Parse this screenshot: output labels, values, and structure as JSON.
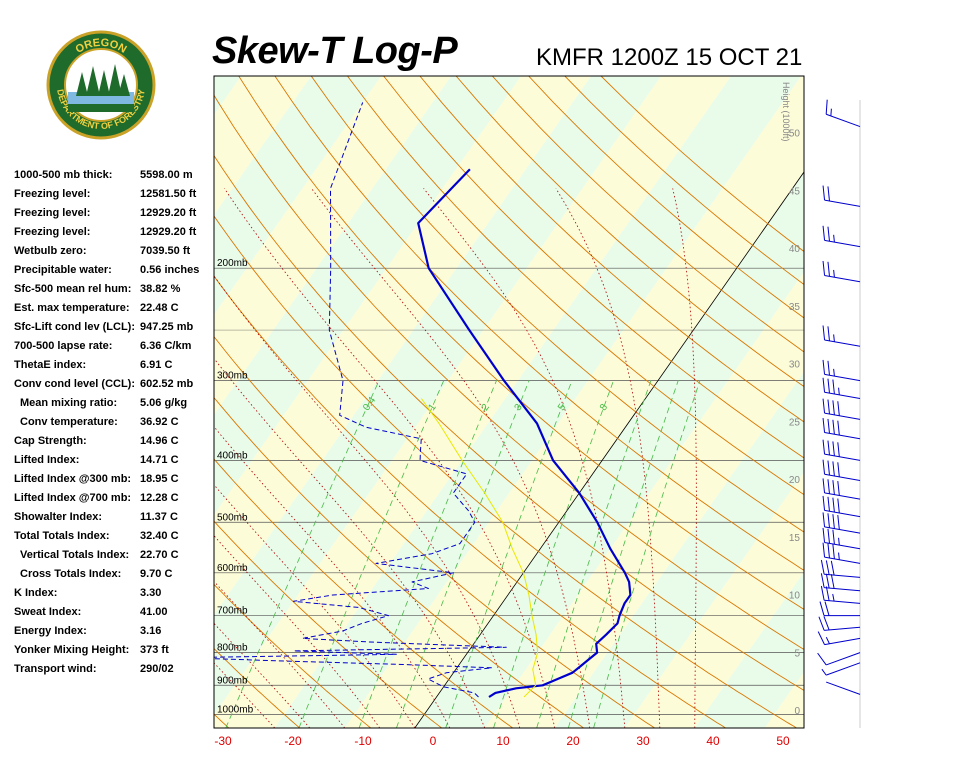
{
  "title": "Skew-T Log-P",
  "station": "KMFR 1200Z 15 OCT 21",
  "logo": {
    "top_text": "OREGON",
    "bottom_text": "DEPARTMENT OF FORESTRY"
  },
  "height_axis_label": "Height (1000ft)",
  "indices": [
    {
      "label": "1000-500 mb thick:",
      "value": "5598.00 m"
    },
    {
      "label": "Freezing level:",
      "value": "12581.50 ft"
    },
    {
      "label": "Freezing level:",
      "value": "12929.20 ft"
    },
    {
      "label": "Freezing level:",
      "value": "12929.20 ft"
    },
    {
      "label": "Wetbulb zero:",
      "value": "7039.50 ft"
    },
    {
      "label": "Precipitable water:",
      "value": "0.56 inches"
    },
    {
      "label": "Sfc-500 mean rel hum:",
      "value": "38.82 %"
    },
    {
      "label": "Est. max temperature:",
      "value": "22.48 C"
    },
    {
      "label": "Sfc-Lift cond lev (LCL):",
      "value": "947.25 mb"
    },
    {
      "label": "700-500 lapse rate:",
      "value": "6.36 C/km"
    },
    {
      "label": "ThetaE index:",
      "value": "6.91 C"
    },
    {
      "label": "Conv cond level (CCL):",
      "value": "602.52 mb"
    },
    {
      "label": "Mean mixing ratio:",
      "value": "5.06 g/kg",
      "indent": true
    },
    {
      "label": "Conv temperature:",
      "value": "36.92 C",
      "indent": true
    },
    {
      "label": "Cap Strength:",
      "value": "14.96 C"
    },
    {
      "label": "Lifted Index:",
      "value": "14.71 C"
    },
    {
      "label": "Lifted Index @300 mb:",
      "value": "18.95 C"
    },
    {
      "label": "Lifted Index @700 mb:",
      "value": "12.28 C"
    },
    {
      "label": "Showalter Index:",
      "value": "11.37 C"
    },
    {
      "label": "Total Totals Index:",
      "value": "32.40 C"
    },
    {
      "label": "Vertical Totals Index:",
      "value": "22.70 C",
      "indent": true
    },
    {
      "label": "Cross Totals Index:",
      "value": "9.70 C",
      "indent": true
    },
    {
      "label": "K Index:",
      "value": "3.30"
    },
    {
      "label": "Sweat Index:",
      "value": "41.00"
    },
    {
      "label": "Energy Index:",
      "value": "3.16"
    },
    {
      "label": "Yonker Mixing Height:",
      "value": "373 ft"
    },
    {
      "label": "Transport wind:",
      "value": "290/02"
    }
  ],
  "chart_data": {
    "type": "line",
    "title": "Skew-T Log-P",
    "xlabel": "",
    "ylabel": "",
    "x_ticks": [
      -30,
      -20,
      -10,
      0,
      10,
      20,
      30,
      40,
      50
    ],
    "pressure_levels": [
      "200mb",
      "300mb",
      "400mb",
      "500mb",
      "600mb",
      "700mb",
      "800mb",
      "900mb",
      "1000mb"
    ],
    "height_ticks": [
      0,
      5,
      10,
      15,
      20,
      25,
      30,
      35,
      40,
      45,
      50
    ],
    "mixing_ratio_labels": [
      "0.4",
      "1",
      "2",
      "3",
      "5",
      "8"
    ],
    "colors": {
      "temperature": "#0000cc",
      "dewpoint": "#0000cc",
      "parcel": "#e8e800",
      "dry_adiabat": "#d97700",
      "moist_adiabat": "#b00000",
      "mixing_ratio": "#44bb44",
      "band_green": "#e9fbe9",
      "band_yellow": "#fdfcd9"
    },
    "series": [
      {
        "points": [
          [
            939,
            7.5
          ],
          [
            925,
            8
          ],
          [
            910,
            10.5
          ],
          [
            900,
            14
          ],
          [
            880,
            15.5
          ],
          [
            860,
            17
          ],
          [
            840,
            17.5
          ],
          [
            820,
            18
          ],
          [
            800,
            18.5
          ],
          [
            775,
            17.5
          ],
          [
            750,
            18
          ],
          [
            720,
            18.5
          ],
          [
            700,
            18
          ],
          [
            670,
            17.5
          ],
          [
            650,
            17.5
          ],
          [
            620,
            16
          ],
          [
            600,
            14.5
          ],
          [
            550,
            10
          ],
          [
            500,
            5.5
          ],
          [
            450,
            0
          ],
          [
            400,
            -7
          ],
          [
            350,
            -13
          ],
          [
            300,
            -22
          ],
          [
            250,
            -32
          ],
          [
            200,
            -44
          ],
          [
            170,
            -50
          ],
          [
            140,
            -48
          ]
        ]
      },
      {
        "points": [
          [
            939,
            6
          ],
          [
            925,
            5
          ],
          [
            905,
            0
          ],
          [
            880,
            -3
          ],
          [
            860,
            -1
          ],
          [
            845,
            5
          ],
          [
            835,
            -8
          ],
          [
            825,
            -25
          ],
          [
            815,
            -40
          ],
          [
            805,
            -10
          ],
          [
            795,
            -25
          ],
          [
            785,
            5
          ],
          [
            770,
            -15
          ],
          [
            760,
            -25
          ],
          [
            740,
            -20
          ],
          [
            720,
            -18
          ],
          [
            700,
            -15
          ],
          [
            680,
            -20
          ],
          [
            665,
            -30
          ],
          [
            650,
            -25
          ],
          [
            635,
            -12
          ],
          [
            620,
            -15
          ],
          [
            600,
            -10
          ],
          [
            580,
            -22
          ],
          [
            560,
            -15
          ],
          [
            540,
            -12
          ],
          [
            520,
            -12
          ],
          [
            500,
            -12
          ],
          [
            480,
            -14
          ],
          [
            450,
            -18
          ],
          [
            420,
            -18
          ],
          [
            400,
            -26
          ],
          [
            385,
            -27
          ],
          [
            370,
            -28
          ],
          [
            355,
            -37
          ],
          [
            340,
            -42
          ],
          [
            300,
            -45
          ],
          [
            250,
            -52
          ],
          [
            200,
            -58
          ],
          [
            150,
            -66
          ],
          [
            110,
            -70
          ]
        ]
      },
      {
        "points": [
          [
            939,
            12.5
          ],
          [
            900,
            13
          ],
          [
            850,
            11
          ],
          [
            800,
            10
          ],
          [
            750,
            8
          ],
          [
            700,
            5.5
          ],
          [
            650,
            3
          ],
          [
            600,
            0
          ],
          [
            550,
            -4
          ],
          [
            500,
            -8
          ],
          [
            450,
            -13.5
          ],
          [
            400,
            -20
          ],
          [
            350,
            -27
          ],
          [
            320,
            -32
          ]
        ]
      }
    ],
    "wind_barbs": [
      {
        "pressure": 930,
        "direction": 290,
        "speed": 2
      },
      {
        "pressure": 830,
        "direction": 250,
        "speed": 5
      },
      {
        "pressure": 800,
        "direction": 250,
        "speed": 10
      },
      {
        "pressure": 760,
        "direction": 260,
        "speed": 15
      },
      {
        "pressure": 730,
        "direction": 265,
        "speed": 20
      },
      {
        "pressure": 700,
        "direction": 270,
        "speed": 20
      },
      {
        "pressure": 670,
        "direction": 275,
        "speed": 25
      },
      {
        "pressure": 640,
        "direction": 275,
        "speed": 30
      },
      {
        "pressure": 610,
        "direction": 275,
        "speed": 30
      },
      {
        "pressure": 580,
        "direction": 280,
        "speed": 35
      },
      {
        "pressure": 550,
        "direction": 280,
        "speed": 35
      },
      {
        "pressure": 520,
        "direction": 280,
        "speed": 40
      },
      {
        "pressure": 490,
        "direction": 280,
        "speed": 40
      },
      {
        "pressure": 460,
        "direction": 280,
        "speed": 40
      },
      {
        "pressure": 430,
        "direction": 280,
        "speed": 40
      },
      {
        "pressure": 400,
        "direction": 280,
        "speed": 40
      },
      {
        "pressure": 370,
        "direction": 280,
        "speed": 40
      },
      {
        "pressure": 345,
        "direction": 280,
        "speed": 40
      },
      {
        "pressure": 320,
        "direction": 280,
        "speed": 35
      },
      {
        "pressure": 300,
        "direction": 280,
        "speed": 25
      },
      {
        "pressure": 265,
        "direction": 280,
        "speed": 25
      },
      {
        "pressure": 210,
        "direction": 280,
        "speed": 25
      },
      {
        "pressure": 185,
        "direction": 280,
        "speed": 25
      },
      {
        "pressure": 160,
        "direction": 280,
        "speed": 20
      },
      {
        "pressure": 120,
        "direction": 290,
        "speed": 15
      }
    ]
  }
}
